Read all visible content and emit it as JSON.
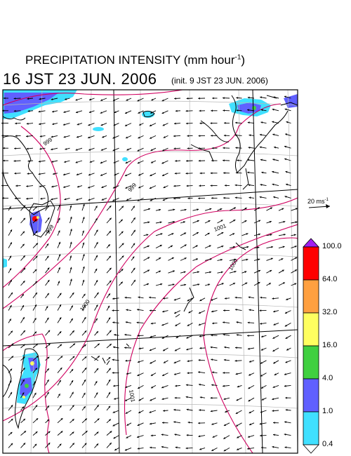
{
  "header": {
    "title_main": "PRECIPITATION INTENSITY (mm hour",
    "title_sup": "-1",
    "title_close": ")",
    "valid_time": "16 JST 23 JUN. 2006",
    "init_time": "(init. 9 JST 23 JUN. 2006)"
  },
  "wind_reference": {
    "value": "20 ms",
    "unit_sup": "-1"
  },
  "color_scale": {
    "labels": [
      "100.0",
      "64.0",
      "32.0",
      "16.0",
      "4.0",
      "1.0",
      "0.4"
    ],
    "colors": [
      "#ff0000",
      "#ffa040",
      "#ffff60",
      "#40d040",
      "#6060ff",
      "#40e0ff"
    ],
    "over_color": "#a020f0",
    "under_color": "#ffffff"
  },
  "isobar_labels": [
    "999",
    "999",
    "1001",
    "1000",
    "1000",
    "1001",
    "999"
  ],
  "map_colors": {
    "isobar": "#d00060",
    "grid": "#b8b8b8",
    "coast": "#000000"
  }
}
